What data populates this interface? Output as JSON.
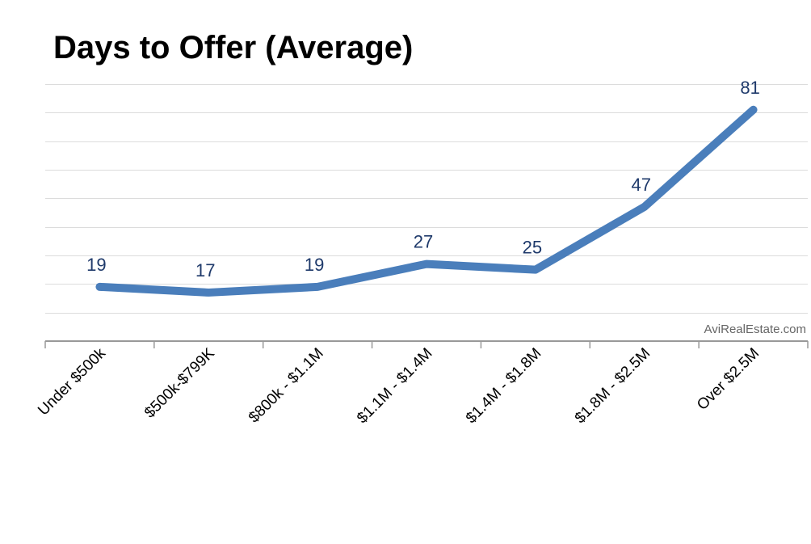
{
  "chart_data": {
    "type": "line",
    "title": "Days to Offer (Average)",
    "categories": [
      "Under $500k",
      "$500k-$799K",
      "$800k - $1.1M",
      "$1.1M - $1.4M",
      "$1.4M - $1.8M",
      "$1.8M - $2.5M",
      "Over $2.5M"
    ],
    "values": [
      19,
      17,
      19,
      27,
      25,
      47,
      81
    ],
    "ylim": [
      0,
      90
    ],
    "grid": true,
    "y_tick_step": 10,
    "data_labels": true,
    "line_color": "#4a7ebb",
    "label_color": "#1f3a6b",
    "watermark": "AviRealEstate.com"
  }
}
